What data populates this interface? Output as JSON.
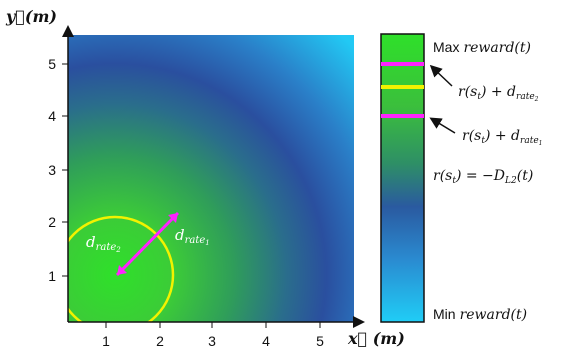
{
  "axes": {
    "y_label": "y⃗(m)",
    "x_label": "x⃗ (m)",
    "y_ticks": [
      "1",
      "2",
      "3",
      "4",
      "5"
    ],
    "x_ticks": [
      "1",
      "2",
      "3",
      "4",
      "5"
    ]
  },
  "plot": {
    "labels": {
      "d_rate2": "d",
      "d_rate2_sub": "rate",
      "d_rate2_subsub": "2",
      "d_rate1": "d",
      "d_rate1_sub": "rate",
      "d_rate1_subsub": "1"
    }
  },
  "colorbar": {
    "max_text": "Max",
    "max_reward": "reward(t)",
    "min_text": "Min",
    "min_reward": "reward(t)",
    "line1_prefix": "r(s",
    "line1_sub": "t",
    "line1_mid": ") + d",
    "line1_rate": "rate",
    "line1_rate_sub": "2",
    "line2_prefix": "r(s",
    "line2_sub": "t",
    "line2_mid": ") + d",
    "line2_rate": "rate",
    "line2_rate_sub": "1",
    "line3_prefix": "r(s",
    "line3_sub": "t",
    "line3_mid": ") = −D",
    "line3_sub2": "L2",
    "line3_suffix": "(t)"
  },
  "colors": {
    "max": "#2ee02a",
    "mid": "#2a4fa0",
    "min": "#22c8f5",
    "threshold_magenta": "#ff22ff",
    "threshold_yellow": "#f2f200"
  }
}
